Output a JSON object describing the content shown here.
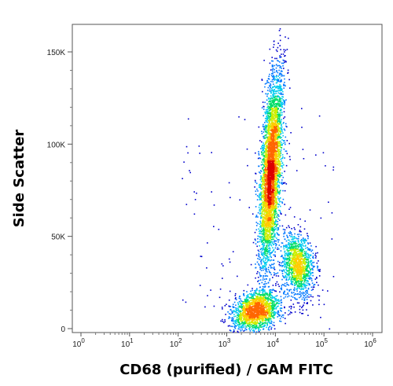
{
  "chart_data": {
    "type": "scatter",
    "subtype": "density-dot-plot",
    "title": "",
    "xlabel": "CD68 (purified) / GAM FITC",
    "ylabel": "Side Scatter",
    "x_scale": "log",
    "xlim": [
      1,
      1000000
    ],
    "ylim": [
      -3000,
      165000
    ],
    "x_ticks": [
      {
        "value": 1,
        "base": "10",
        "exp": "0"
      },
      {
        "value": 10,
        "base": "10",
        "exp": "1"
      },
      {
        "value": 100,
        "base": "10",
        "exp": "2"
      },
      {
        "value": 1000,
        "base": "10",
        "exp": "3"
      },
      {
        "value": 10000,
        "base": "10",
        "exp": "4"
      },
      {
        "value": 100000,
        "base": "10",
        "exp": "5"
      },
      {
        "value": 1000000,
        "base": "10",
        "exp": "6"
      }
    ],
    "y_ticks": [
      {
        "value": 0,
        "label": "0"
      },
      {
        "value": 50000,
        "label": "50K"
      },
      {
        "value": 100000,
        "label": "100K"
      },
      {
        "value": 150000,
        "label": "150K"
      }
    ],
    "density_colors": [
      "#0000cc",
      "#0077ff",
      "#00ccee",
      "#00dd66",
      "#ccee00",
      "#ffcc00",
      "#ff6600",
      "#dd0000"
    ],
    "populations": [
      {
        "log10_center_x": 3.9,
        "center_y": 85000,
        "log10_sd_x": 0.12,
        "sd_y": 27000,
        "correlation": 0.55,
        "weight": 0.58
      },
      {
        "log10_center_x": 3.6,
        "center_y": 10000,
        "log10_sd_x": 0.24,
        "sd_y": 5500,
        "correlation": 0.3,
        "weight": 0.24
      },
      {
        "log10_center_x": 4.45,
        "center_y": 35000,
        "log10_sd_x": 0.17,
        "sd_y": 9000,
        "correlation": -0.2,
        "weight": 0.18
      }
    ],
    "grid": false,
    "legend": "none"
  }
}
